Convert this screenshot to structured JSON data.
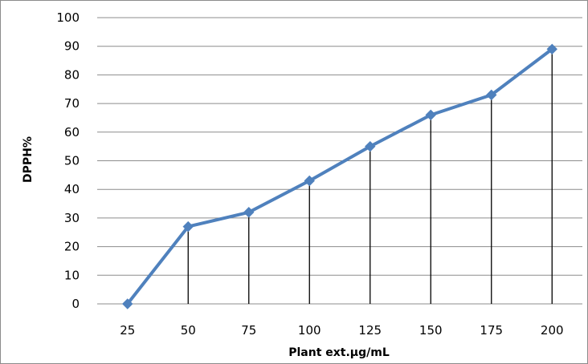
{
  "chart_data": {
    "type": "line",
    "categories": [
      "25",
      "50",
      "75",
      "100",
      "125",
      "150",
      "175",
      "200"
    ],
    "series": [
      {
        "values": [
          0,
          27,
          32,
          43,
          55,
          66,
          73,
          89
        ]
      }
    ],
    "xlabel": "Plant ext.µg/mL",
    "ylabel": "DPPH%",
    "ylim": [
      0,
      100
    ],
    "yticks": [
      "0",
      "10",
      "20",
      "30",
      "40",
      "50",
      "60",
      "70",
      "80",
      "90",
      "100"
    ],
    "grid": "horizontal",
    "drop_lines": true,
    "colors": {
      "series": "#4f81bd",
      "grid": "#8c8c8c",
      "drop_line": "#000000"
    }
  }
}
